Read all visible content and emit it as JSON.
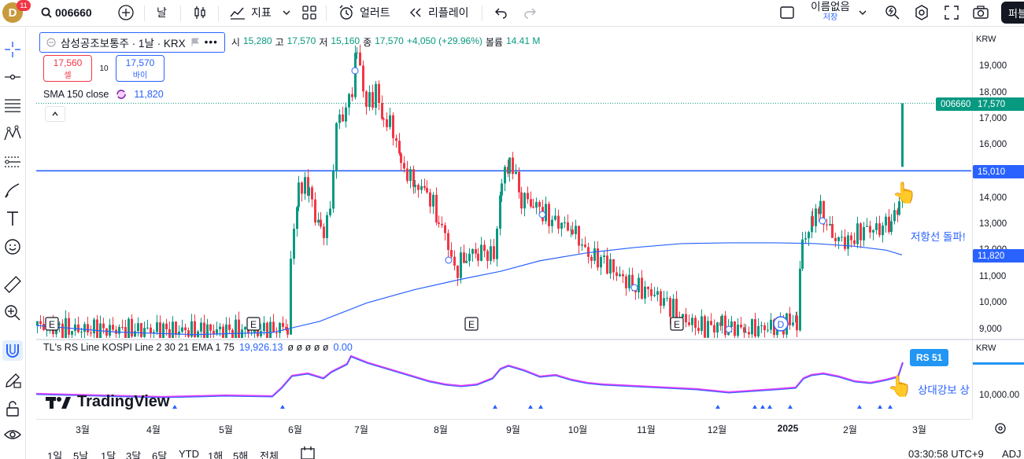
{
  "topbar": {
    "avatar_letter": "D",
    "notification_count": "11",
    "symbol": "006660",
    "interval": "날",
    "indicators_label": "지표",
    "alert_label": "얼러트",
    "replay_label": "리플레이",
    "layout_name": "이름없음",
    "save_label": "저장",
    "publish_label": "퍼블"
  },
  "legend": {
    "title": "삼성공조보통주 · 1날 · KRX",
    "open_label": "시",
    "open": "15,280",
    "high_label": "고",
    "high": "17,570",
    "low_label": "저",
    "low": "15,160",
    "close_label": "종",
    "close": "17,570",
    "change": "+4,050 (+29.96%)",
    "volume_label": "볼륨",
    "volume": "14.41 M"
  },
  "trade": {
    "sell_price": "17,560",
    "sell_label": "셀",
    "quantity": "10",
    "buy_price": "17,570",
    "buy_label": "바이"
  },
  "sma": {
    "label": "SMA 150 close",
    "value": "11,820"
  },
  "price_scale": {
    "currency": "KRW",
    "ticks": [
      "19,000",
      "18,000",
      "17,000",
      "16,000",
      "14,000",
      "13,000",
      "12,000",
      "11,000",
      "10,000",
      "9,000"
    ],
    "symbol_tag": "006660",
    "last_price": "17,570",
    "line_price": "15,010",
    "sma_price": "11,820"
  },
  "indicator": {
    "label": "TL's RS Line KOSPI Line 2 30 21 EMA 1 75",
    "value": "19,926.13",
    "zeros": "ø ø ø ø ø",
    "last": "0.00",
    "currency": "KRW",
    "scale_value": "10,000.00",
    "rs_tag": "RS 51"
  },
  "annotations": {
    "resistance": "저항선 돌파!",
    "relative_strength": "상대강보 상"
  },
  "earnings_markers": [
    "E",
    "E",
    "E"
  ],
  "dividend_marker": "D",
  "time_axis": [
    "3월",
    "4월",
    "5월",
    "6월",
    "7월",
    "8월",
    "9월",
    "10월",
    "11월",
    "12월",
    "2025",
    "2월",
    "3월"
  ],
  "bottombar": {
    "ranges": [
      "1일",
      "5날",
      "1달",
      "3달",
      "6달",
      "YTD",
      "1해",
      "5해",
      "전체"
    ],
    "time": "03:30:58 UTC+9",
    "adj": "ADJ"
  },
  "logo_text": "TradingView",
  "colors": {
    "up": "#089981",
    "down": "#f23645",
    "accent": "#2962ff",
    "sma": "#2962ff",
    "rs_line": "#2962ff",
    "rs_line_alt": "#e040fb"
  }
}
